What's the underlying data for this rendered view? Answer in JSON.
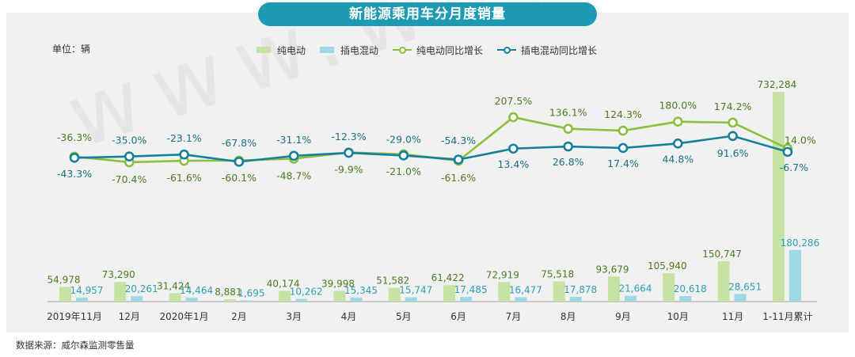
{
  "title": "新能源乘用车分月度销量",
  "unit_label": "单位：辆",
  "source": "数据来源：威尔森监测零售量",
  "watermark": "www.way-s.cn",
  "colors": {
    "title_bg": "#1e9bb2",
    "bev_bar": "#c7e3a3",
    "phev_bar": "#9ed8e2",
    "bev_line": "#8cbf3f",
    "phev_line": "#16809a",
    "bev_label": "#4d7a1e",
    "phev_label_bar": "#2c9fb5",
    "phev_label_line": "#1a6f82"
  },
  "legend": [
    "纯电动",
    "插电混动",
    "纯电动同比增长",
    "插电混动同比增长"
  ],
  "chart_data": {
    "type": "bar",
    "title": "新能源乘用车分月度销量",
    "categories": [
      "2019年11月",
      "12月",
      "2020年1月",
      "2月",
      "3月",
      "4月",
      "5月",
      "6月",
      "7月",
      "8月",
      "9月",
      "10月",
      "11月",
      "1-11月累计"
    ],
    "series": [
      {
        "name": "纯电动",
        "type": "bar",
        "values": [
          54978,
          73290,
          31424,
          8881,
          40174,
          39998,
          51582,
          61422,
          72919,
          75518,
          93679,
          105940,
          150747,
          732284
        ],
        "labels": [
          "54,978",
          "73,290",
          "31,424",
          "8,881",
          "40,174",
          "39,998",
          "51,582",
          "61,422",
          "72,919",
          "75,518",
          "93,679",
          "105,940",
          "150,747",
          "732,284"
        ]
      },
      {
        "name": "插电混动",
        "type": "bar",
        "values": [
          14957,
          20261,
          14464,
          1695,
          10262,
          15345,
          15747,
          17485,
          16477,
          17878,
          21664,
          20618,
          28651,
          180286
        ],
        "labels": [
          "14,957",
          "20,261",
          "14,464",
          "1,695",
          "10,262",
          "15,345",
          "15,747",
          "17,485",
          "16,477",
          "17,878",
          "21,664",
          "20,618",
          "28,651",
          "180,286"
        ]
      },
      {
        "name": "纯电动同比增长",
        "type": "line",
        "values": [
          -36.3,
          -70.4,
          -61.6,
          -60.1,
          -48.7,
          -9.9,
          -21.0,
          -61.6,
          207.5,
          136.1,
          124.3,
          180.0,
          174.2,
          14.0
        ],
        "labels": [
          "-36.3%",
          "-70.4%",
          "-61.6%",
          "-60.1%",
          "-48.7%",
          "-9.9%",
          "-21.0%",
          "-61.6%",
          "207.5%",
          "136.1%",
          "124.3%",
          "180.0%",
          "174.2%",
          "14.0%"
        ]
      },
      {
        "name": "插电混动同比增长",
        "type": "line",
        "values": [
          -43.3,
          -35.0,
          -23.1,
          -67.8,
          -31.1,
          -12.3,
          -29.0,
          -54.3,
          13.4,
          26.8,
          17.4,
          44.8,
          91.6,
          -6.7
        ],
        "labels": [
          "-43.3%",
          "-35.0%",
          "-23.1%",
          "-67.8%",
          "-31.1%",
          "-12.3%",
          "-29.0%",
          "-54.3%",
          "13.4%",
          "26.8%",
          "17.4%",
          "44.8%",
          "91.6%",
          "-6.7%"
        ]
      }
    ],
    "legend_position": "top",
    "grid": false
  }
}
